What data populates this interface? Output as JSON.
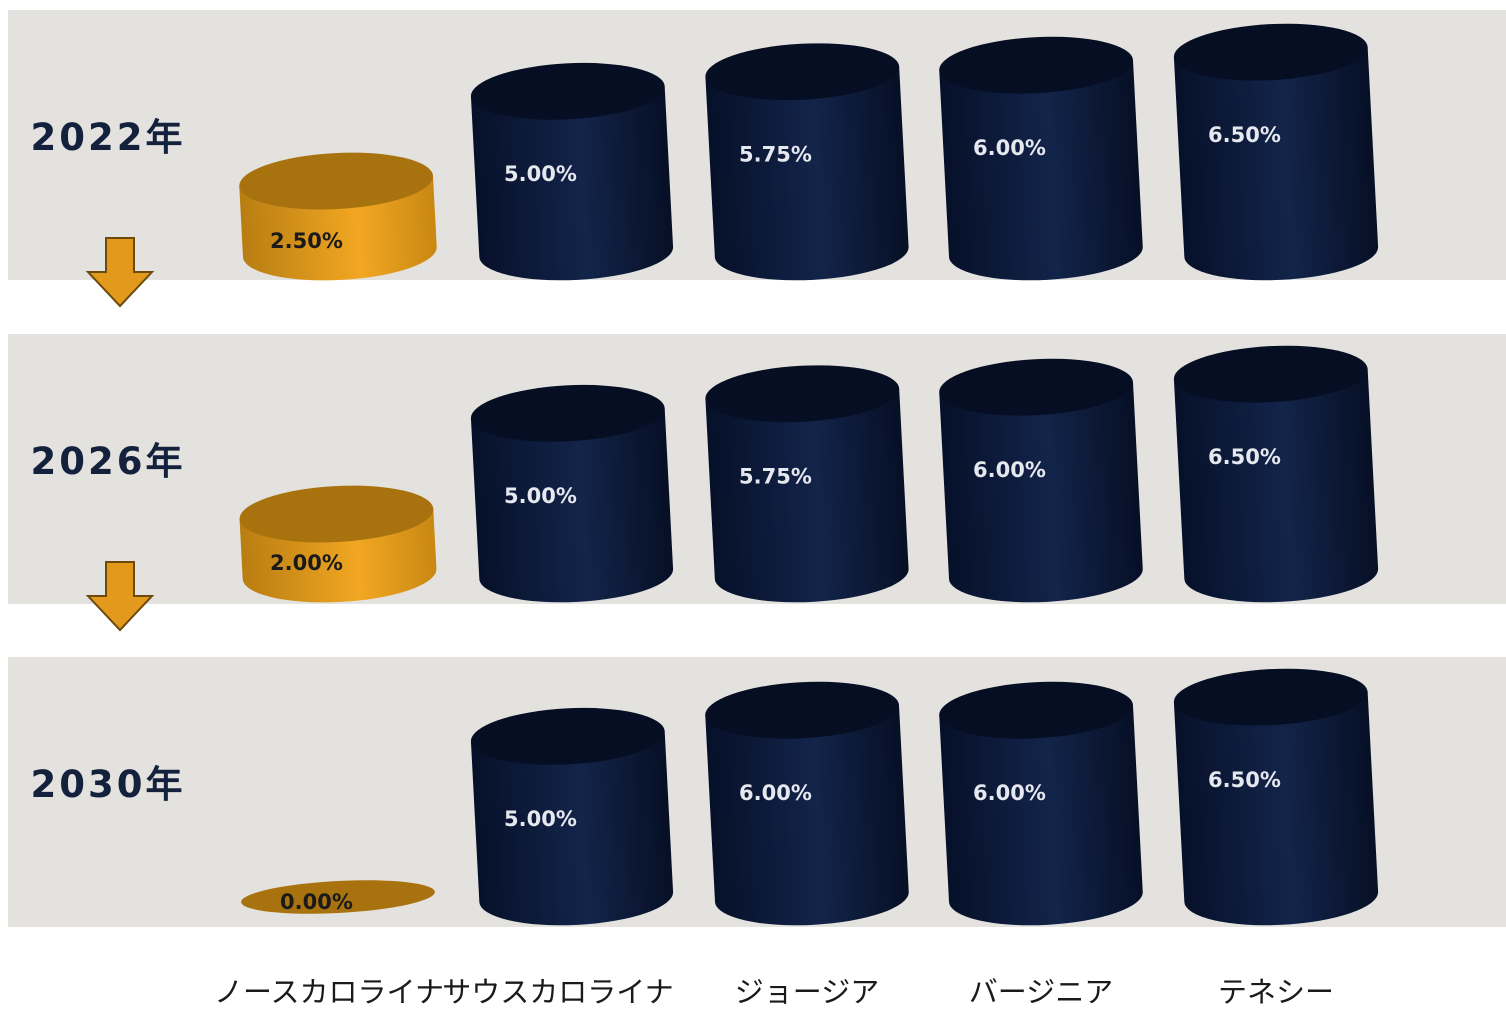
{
  "chart_data": {
    "type": "bar",
    "categories": [
      "ノースカロライナ",
      "サウスカロライナ",
      "ジョージア",
      "バージニア",
      "テネシー"
    ],
    "series": [
      {
        "name": "2022年",
        "values": [
          2.5,
          5.0,
          5.75,
          6.0,
          6.5
        ],
        "labels": [
          "2.50%",
          "5.00%",
          "5.75%",
          "6.00%",
          "6.50%"
        ]
      },
      {
        "name": "2026年",
        "values": [
          2.0,
          5.0,
          5.75,
          6.0,
          6.5
        ],
        "labels": [
          "2.00%",
          "5.00%",
          "5.75%",
          "6.00%",
          "6.50%"
        ]
      },
      {
        "name": "2030年",
        "values": [
          0.0,
          5.0,
          6.0,
          6.0,
          6.5
        ],
        "labels": [
          "0.00%",
          "5.00%",
          "6.00%",
          "6.00%",
          "6.50%"
        ]
      }
    ],
    "highlight_category": "ノースカロライナ",
    "ylim": [
      0,
      6.5
    ],
    "grid": false,
    "legend": "none",
    "colors": {
      "panel_bg": "#e4e2de",
      "highlight": "#e39a1c",
      "highlight_dark": "#a8730f",
      "bar": "#0e1d3f",
      "bar_dark": "#050e22",
      "year_text": "#13213d",
      "bar_label_light": "#e6e8ef",
      "bar_label_dark": "#1a1a1a",
      "arrow_fill": "#e39a1c",
      "arrow_stroke": "#6b4a0c",
      "category_text": "#1a1a1a"
    }
  }
}
